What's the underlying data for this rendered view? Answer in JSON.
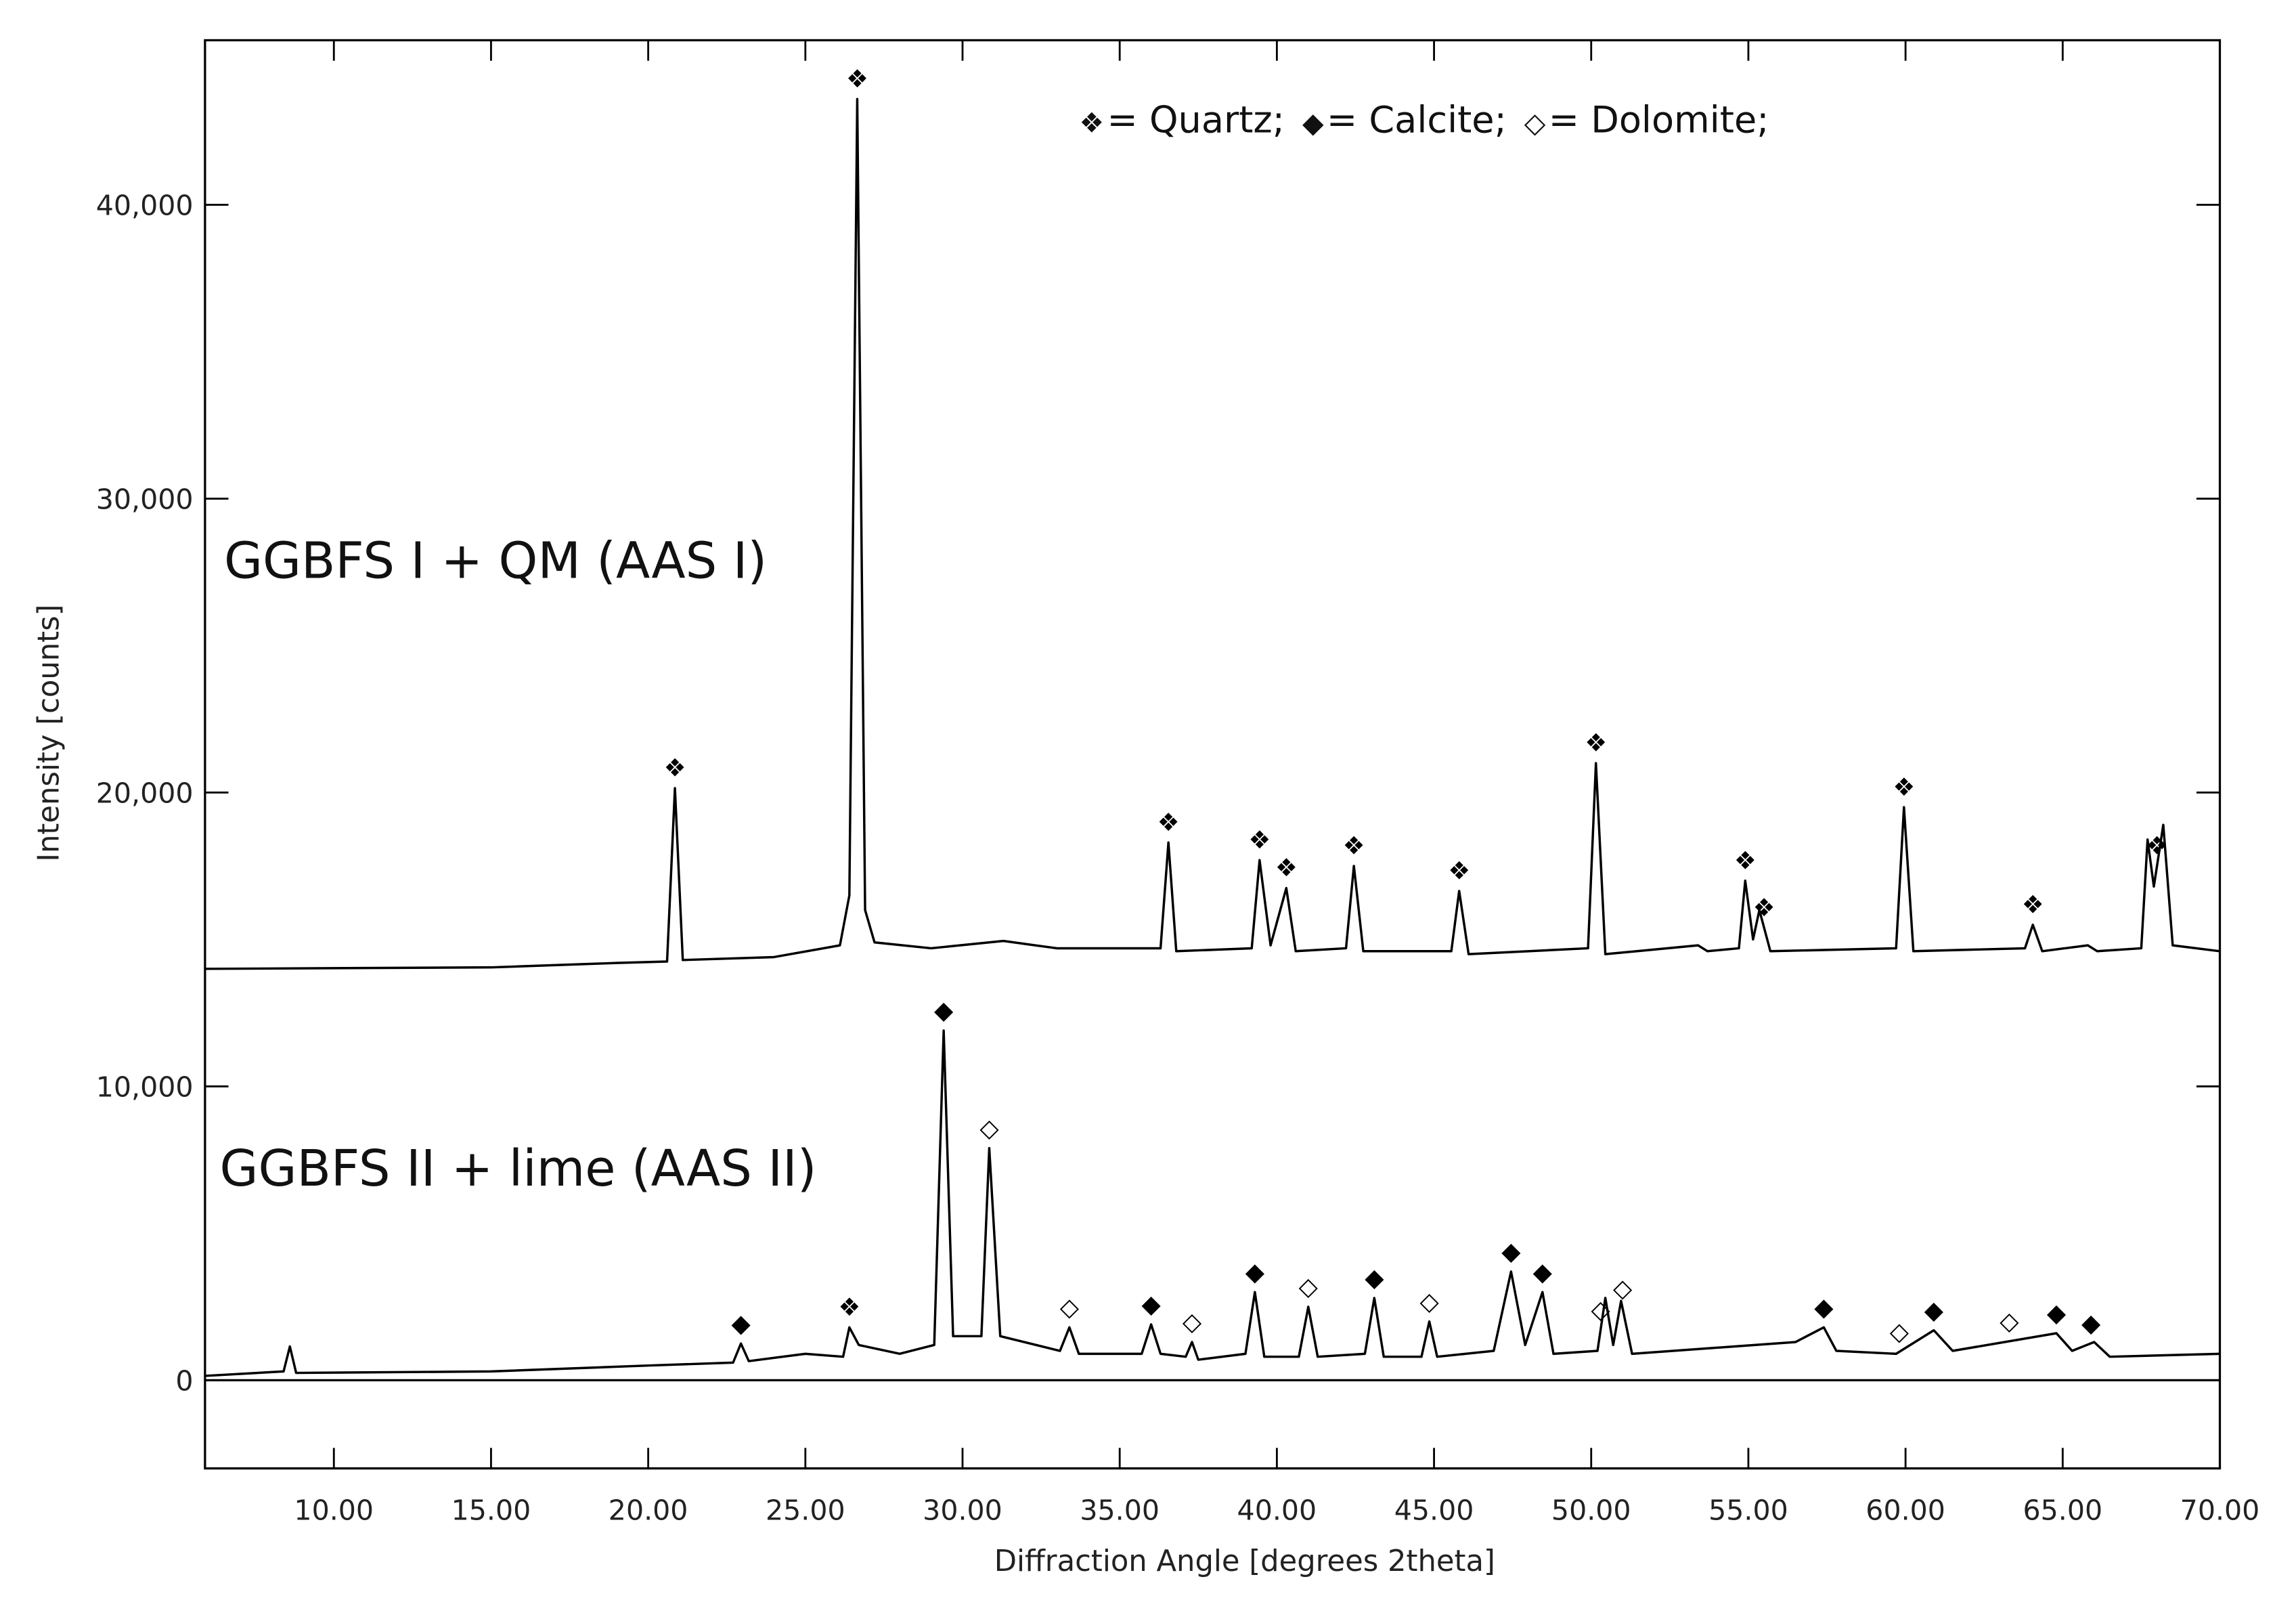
{
  "chart_data": {
    "type": "line",
    "xlabel": "Diffraction Angle [degrees 2theta]",
    "ylabel": "Intensity [counts]",
    "xlim": [
      5.9,
      70
    ],
    "ylim": [
      -3000,
      45600
    ],
    "xticks": [
      {
        "value": 10,
        "label": "10.00"
      },
      {
        "value": 15,
        "label": "15.00"
      },
      {
        "value": 20,
        "label": "20.00"
      },
      {
        "value": 25,
        "label": "25.00"
      },
      {
        "value": 30,
        "label": "30.00"
      },
      {
        "value": 35,
        "label": "35.00"
      },
      {
        "value": 40,
        "label": "40.00"
      },
      {
        "value": 45,
        "label": "45.00"
      },
      {
        "value": 50,
        "label": "50.00"
      },
      {
        "value": 55,
        "label": "55.00"
      },
      {
        "value": 60,
        "label": "60.00"
      },
      {
        "value": 65,
        "label": "65.00"
      },
      {
        "value": 70,
        "label": "70.00"
      }
    ],
    "yticks": [
      0,
      {
        "value": 10000,
        "label": "10,000"
      },
      {
        "value": 20000,
        "label": "20,000"
      },
      {
        "value": 30000,
        "label": "30,000"
      },
      {
        "value": 40000,
        "label": "40,000"
      }
    ],
    "legend": [
      {
        "symbol": "❖",
        "label": "= Quartz;"
      },
      {
        "symbol": "◆",
        "label": "= Calcite;"
      },
      {
        "symbol": "◇",
        "label": "= Dolomite;"
      }
    ],
    "series": [
      {
        "name": "GGBFS I + QM (AAS I)",
        "color": "#000000",
        "x": [
          5.9,
          15,
          19,
          20.6,
          20.85,
          21.1,
          24,
          26.1,
          26.4,
          26.65,
          26.9,
          27.2,
          29,
          31.3,
          33,
          35.5,
          36.3,
          36.55,
          36.8,
          39.2,
          39.45,
          39.8,
          40.3,
          40.6,
          42.2,
          42.45,
          42.75,
          45.55,
          45.8,
          46.1,
          49.9,
          50.15,
          50.45,
          53.4,
          53.7,
          54.7,
          54.9,
          55.15,
          55.35,
          55.7,
          59.7,
          59.95,
          60.25,
          63.8,
          64.05,
          64.35,
          65.8,
          66.1,
          67.5,
          67.7,
          67.9,
          68.2,
          68.5,
          70
        ],
        "values": [
          14000,
          14050,
          14200,
          14250,
          20150,
          14300,
          14400,
          14800,
          16500,
          43600,
          16000,
          14900,
          14700,
          14950,
          14700,
          14700,
          14700,
          18300,
          14600,
          14700,
          17700,
          14800,
          16750,
          14600,
          14700,
          17500,
          14600,
          14600,
          16650,
          14500,
          14700,
          21000,
          14500,
          14800,
          14600,
          14700,
          17000,
          15000,
          16000,
          14600,
          14700,
          19500,
          14600,
          14700,
          15500,
          14600,
          14800,
          14600,
          14700,
          18400,
          16800,
          18900,
          14800,
          14600
        ],
        "markers": [
          {
            "symbol": "❖",
            "x": 20.85
          },
          {
            "symbol": "❖",
            "x": 26.65
          },
          {
            "symbol": "❖",
            "x": 36.55
          },
          {
            "symbol": "❖",
            "x": 39.45
          },
          {
            "symbol": "❖",
            "x": 40.3
          },
          {
            "symbol": "❖",
            "x": 42.45
          },
          {
            "symbol": "❖",
            "x": 45.8
          },
          {
            "symbol": "❖",
            "x": 50.15
          },
          {
            "symbol": "❖",
            "x": 54.9
          },
          {
            "symbol": "❖",
            "x": 55.5
          },
          {
            "symbol": "❖",
            "x": 59.95
          },
          {
            "symbol": "❖",
            "x": 64.05
          },
          {
            "symbol": "❖",
            "x": 68.0
          }
        ]
      },
      {
        "name": "GGBFS II + lime (AAS II)",
        "color": "#000000",
        "x": [
          5.9,
          8.4,
          8.6,
          8.8,
          15,
          20,
          22.7,
          22.95,
          23.2,
          25,
          26.2,
          26.4,
          26.7,
          28,
          29.1,
          29.4,
          29.7,
          30.6,
          30.85,
          31.2,
          33.1,
          33.4,
          33.7,
          35.7,
          36,
          36.3,
          37.1,
          37.3,
          37.5,
          39,
          39.3,
          39.6,
          40.7,
          41,
          41.3,
          42.8,
          43.1,
          43.4,
          44.6,
          44.85,
          45.1,
          46.9,
          47.45,
          47.9,
          48.45,
          48.8,
          50.2,
          50.45,
          50.7,
          50.95,
          51.3,
          56.5,
          57.4,
          57.8,
          59.7,
          60.9,
          61.5,
          64.8,
          65.3,
          66,
          66.5,
          70
        ],
        "values": [
          150,
          300,
          1150,
          250,
          300,
          500,
          600,
          1250,
          650,
          900,
          800,
          1800,
          1200,
          900,
          1200,
          11900,
          1500,
          1500,
          7900,
          1500,
          1000,
          1800,
          900,
          900,
          1900,
          900,
          800,
          1300,
          700,
          900,
          3000,
          800,
          800,
          2500,
          800,
          900,
          2800,
          800,
          800,
          2000,
          800,
          1000,
          3700,
          1200,
          3000,
          900,
          1000,
          2800,
          1200,
          2700,
          900,
          1300,
          1800,
          1000,
          900,
          1700,
          1000,
          1600,
          1000,
          1300,
          800,
          900
        ],
        "markers": [
          {
            "symbol": "◆",
            "x": 22.95
          },
          {
            "symbol": "❖",
            "x": 26.4
          },
          {
            "symbol": "◆",
            "x": 29.4
          },
          {
            "symbol": "◇",
            "x": 30.85
          },
          {
            "symbol": "◇",
            "x": 33.4
          },
          {
            "symbol": "◆",
            "x": 36.0
          },
          {
            "symbol": "◇",
            "x": 37.3
          },
          {
            "symbol": "◆",
            "x": 39.3
          },
          {
            "symbol": "◇",
            "x": 41.0
          },
          {
            "symbol": "◆",
            "x": 43.1
          },
          {
            "symbol": "◇",
            "x": 44.85
          },
          {
            "symbol": "◆",
            "x": 47.45
          },
          {
            "symbol": "◆",
            "x": 48.45
          },
          {
            "symbol": "◇",
            "x": 50.3
          },
          {
            "symbol": "◇",
            "x": 51.0
          },
          {
            "symbol": "◆",
            "x": 57.4
          },
          {
            "symbol": "◇",
            "x": 59.8
          },
          {
            "symbol": "◆",
            "x": 60.9
          },
          {
            "symbol": "◇",
            "x": 63.3
          },
          {
            "symbol": "◆",
            "x": 64.8
          },
          {
            "symbol": "◆",
            "x": 65.9
          }
        ]
      }
    ]
  }
}
